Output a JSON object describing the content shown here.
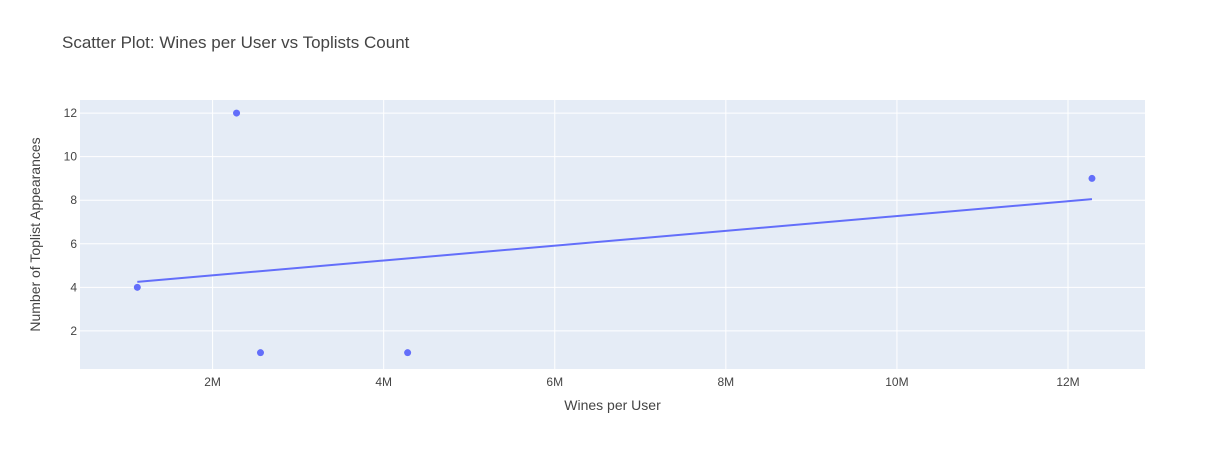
{
  "chart_data": {
    "type": "scatter",
    "title": "Scatter Plot: Wines per User vs Toplists Count",
    "xlabel": "Wines per User",
    "ylabel": "Number of Toplist Appearances",
    "xlim": [
      450000,
      12900000
    ],
    "ylim": [
      0.25,
      12.6
    ],
    "x_ticks": [
      2000000,
      4000000,
      6000000,
      8000000,
      10000000,
      12000000
    ],
    "x_tick_labels": [
      "2M",
      "4M",
      "6M",
      "8M",
      "10M",
      "12M"
    ],
    "y_ticks": [
      2,
      4,
      6,
      8,
      10,
      12
    ],
    "y_tick_labels": [
      "2",
      "4",
      "6",
      "8",
      "10",
      "12"
    ],
    "points": [
      {
        "x": 1120000,
        "y": 4
      },
      {
        "x": 2280000,
        "y": 12
      },
      {
        "x": 2560000,
        "y": 1
      },
      {
        "x": 4280000,
        "y": 1
      },
      {
        "x": 12280000,
        "y": 9
      }
    ],
    "trendline": {
      "x": [
        1120000,
        12280000
      ],
      "y": [
        4.25,
        8.05
      ]
    },
    "grid": true,
    "colors": {
      "marker": "#636efa",
      "line": "#636efa",
      "plot_bg": "#e5ecf6",
      "grid": "#ffffff",
      "text": "#444444"
    }
  }
}
